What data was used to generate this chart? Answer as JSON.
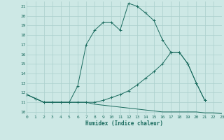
{
  "xlabel": "Humidex (Indice chaleur)",
  "bg_color": "#cde8e5",
  "grid_color": "#aacfcc",
  "line_color": "#1a6b5e",
  "series": [
    {
      "x": [
        0,
        1,
        2,
        3,
        4,
        5,
        6,
        7,
        8,
        9,
        10,
        11,
        12,
        13,
        14,
        15,
        16,
        17,
        18,
        19,
        20,
        21
      ],
      "y": [
        11.8,
        11.4,
        11.0,
        11.0,
        11.0,
        11.0,
        12.7,
        17.0,
        18.5,
        19.3,
        19.3,
        18.5,
        21.3,
        21.0,
        20.3,
        19.5,
        17.5,
        16.2,
        16.2,
        15.0,
        13.0,
        11.2
      ],
      "marker": true
    },
    {
      "x": [
        0,
        1,
        2,
        3,
        4,
        5,
        6,
        7,
        8,
        9,
        10,
        11,
        12,
        13,
        14,
        15,
        16,
        17,
        18,
        19,
        20,
        21
      ],
      "y": [
        11.8,
        11.4,
        11.0,
        11.0,
        11.0,
        11.0,
        11.0,
        11.0,
        11.0,
        11.2,
        11.5,
        11.8,
        12.2,
        12.8,
        13.5,
        14.2,
        15.0,
        16.2,
        16.2,
        15.0,
        13.0,
        11.2
      ],
      "marker": true
    },
    {
      "x": [
        0,
        1,
        2,
        3,
        4,
        5,
        6,
        7,
        8,
        9,
        10,
        11,
        12,
        13,
        14,
        15,
        16,
        17,
        18,
        19,
        20,
        21,
        22,
        23
      ],
      "y": [
        11.8,
        11.4,
        11.0,
        11.0,
        11.0,
        11.0,
        11.0,
        11.0,
        10.8,
        10.7,
        10.6,
        10.5,
        10.4,
        10.3,
        10.2,
        10.1,
        10.0,
        10.0,
        10.0,
        10.0,
        10.0,
        9.9,
        9.9,
        9.8
      ],
      "marker": false
    }
  ],
  "xlim": [
    0,
    23
  ],
  "ylim": [
    9.7,
    21.5
  ],
  "yticks": [
    10,
    11,
    12,
    13,
    14,
    15,
    16,
    17,
    18,
    19,
    20,
    21
  ],
  "xticks": [
    0,
    1,
    2,
    3,
    4,
    5,
    6,
    7,
    8,
    9,
    10,
    11,
    12,
    13,
    14,
    15,
    16,
    17,
    18,
    19,
    20,
    21,
    22,
    23
  ]
}
